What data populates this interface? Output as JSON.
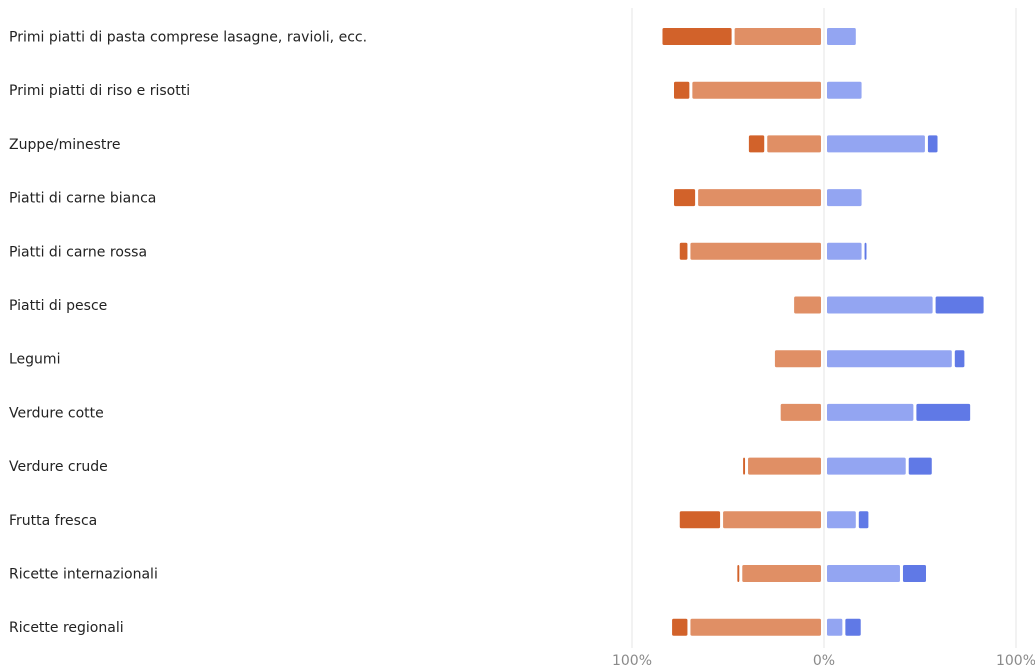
{
  "chart_data": {
    "type": "bar",
    "orientation": "horizontal-diverging-stacked",
    "categories": [
      "Primi piatti di pasta comprese lasagne, ravioli, ecc.",
      "Primi piatti di riso e risotti",
      "Zuppe/minestre",
      "Piatti di carne bianca",
      "Piatti di carne rossa",
      "Piatti di pesce",
      "Legumi",
      "Verdure cotte",
      "Verdure crude",
      "Frutta fresca",
      "Ricette internazionali",
      "Ricette regionali"
    ],
    "series": [
      {
        "side": "negative",
        "color": "#d2622a",
        "values": [
          36,
          8,
          8,
          11,
          4,
          0,
          0,
          0,
          1,
          21,
          1,
          8
        ]
      },
      {
        "side": "negative",
        "color": "#e08f65",
        "values": [
          45,
          67,
          28,
          64,
          68,
          14,
          24,
          21,
          38,
          51,
          41,
          68
        ]
      },
      {
        "side": "positive",
        "color": "#93a5f2",
        "values": [
          15,
          18,
          51,
          18,
          18,
          55,
          65,
          45,
          41,
          15,
          38,
          8
        ]
      },
      {
        "side": "positive",
        "color": "#6079e6",
        "values": [
          0,
          0,
          5,
          0,
          1,
          25,
          5,
          28,
          12,
          5,
          12,
          8
        ]
      }
    ],
    "xlim": [
      -100,
      100
    ],
    "x_ticks": [
      "100%",
      "0%",
      "100%"
    ],
    "grid": true,
    "legend": "none"
  }
}
